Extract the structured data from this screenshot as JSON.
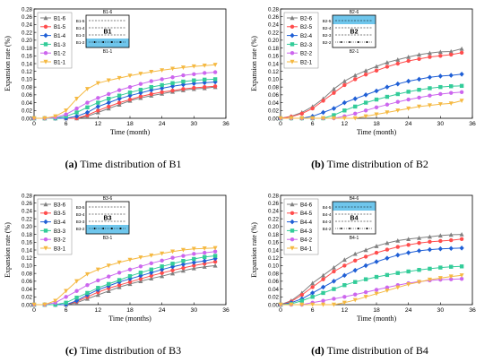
{
  "colors": {
    "s6": "#808080",
    "s5": "#ff4d4d",
    "s4": "#1f5fd6",
    "s3": "#33cc99",
    "s2": "#cc66ee",
    "s1": "#f5b942",
    "panel_fill": "#6fc6ec"
  },
  "panels": [
    {
      "letter": "(a)",
      "caption": "Time distribution of B1",
      "schematic": {
        "top": "B1-6",
        "rows": [
          "B1-5",
          "B1-4",
          "B1-3",
          "B1-2"
        ],
        "mid": "B1",
        "bottom": "B1-1",
        "fill_pos": "bottom"
      },
      "chart_data": {
        "type": "line",
        "xlabel": "Time (month)",
        "ylabel": "Expansion rate (%)",
        "xlim": [
          0,
          36
        ],
        "ylim": [
          0,
          0.28
        ],
        "xticks": [
          "0",
          "6",
          "12",
          "18",
          "24",
          "30",
          "36"
        ],
        "yticks": [
          "0.00",
          "0.02",
          "0.04",
          "0.06",
          "0.08",
          "0.10",
          "0.12",
          "0.14",
          "0.16",
          "0.18",
          "0.20",
          "0.22",
          "0.24",
          "0.26",
          "0.28"
        ],
        "legend": "top-left",
        "x": [
          0,
          2,
          4,
          6,
          8,
          10,
          12,
          14,
          16,
          18,
          20,
          22,
          24,
          26,
          28,
          30,
          32,
          34
        ],
        "series": [
          {
            "name": "B1-6",
            "values": [
              0,
              0,
              0,
              0,
              0,
              0.005,
              0.015,
              0.025,
              0.035,
              0.045,
              0.052,
              0.058,
              0.063,
              0.068,
              0.072,
              0.075,
              0.077,
              0.08
            ]
          },
          {
            "name": "B1-5",
            "values": [
              0,
              0,
              0,
              0,
              0,
              0.008,
              0.02,
              0.03,
              0.04,
              0.048,
              0.056,
              0.062,
              0.067,
              0.071,
              0.075,
              0.078,
              0.08,
              0.082
            ]
          },
          {
            "name": "B1-4",
            "values": [
              0,
              0,
              0,
              0,
              0.005,
              0.015,
              0.03,
              0.04,
              0.05,
              0.058,
              0.065,
              0.072,
              0.077,
              0.082,
              0.086,
              0.089,
              0.091,
              0.093
            ]
          },
          {
            "name": "B1-3",
            "values": [
              0,
              0,
              0,
              0.005,
              0.015,
              0.028,
              0.04,
              0.05,
              0.058,
              0.066,
              0.073,
              0.08,
              0.085,
              0.09,
              0.094,
              0.097,
              0.099,
              0.1
            ]
          },
          {
            "name": "B1-2",
            "values": [
              0,
              0,
              0.002,
              0.01,
              0.025,
              0.04,
              0.052,
              0.062,
              0.072,
              0.08,
              0.088,
              0.095,
              0.1,
              0.105,
              0.11,
              0.113,
              0.116,
              0.118
            ]
          },
          {
            "name": "B1-1",
            "values": [
              0,
              0,
              0.005,
              0.02,
              0.05,
              0.075,
              0.09,
              0.097,
              0.103,
              0.109,
              0.114,
              0.119,
              0.123,
              0.127,
              0.13,
              0.133,
              0.135,
              0.137
            ]
          }
        ]
      }
    },
    {
      "letter": "(b)",
      "caption": "Time distribution of B2",
      "schematic": {
        "top": "B2-6",
        "rows": [
          "B2-5",
          "B2-4",
          "B2-3",
          "B2-2"
        ],
        "mid": "B2",
        "bottom": "B2-1",
        "fill_pos": "top"
      },
      "chart_data": {
        "type": "line",
        "xlabel": "Time (month)",
        "ylabel": "Expansion rate (%)",
        "xlim": [
          0,
          36
        ],
        "ylim": [
          0,
          0.28
        ],
        "xticks": [
          "0",
          "6",
          "12",
          "18",
          "24",
          "30",
          "36"
        ],
        "yticks": [
          "0.00",
          "0.02",
          "0.04",
          "0.06",
          "0.08",
          "0.10",
          "0.12",
          "0.14",
          "0.16",
          "0.18",
          "0.20",
          "0.22",
          "0.24",
          "0.26",
          "0.28"
        ],
        "legend": "top-left",
        "x": [
          0,
          2,
          4,
          6,
          8,
          10,
          12,
          14,
          16,
          18,
          20,
          22,
          24,
          26,
          28,
          30,
          32,
          34
        ],
        "series": [
          {
            "name": "B2-6",
            "values": [
              0,
              0.005,
              0.015,
              0.03,
              0.05,
              0.075,
              0.095,
              0.11,
              0.122,
              0.133,
              0.143,
              0.15,
              0.157,
              0.163,
              0.167,
              0.17,
              0.171,
              0.178
            ]
          },
          {
            "name": "B2-5",
            "values": [
              0,
              0.004,
              0.012,
              0.025,
              0.045,
              0.065,
              0.085,
              0.1,
              0.112,
              0.122,
              0.132,
              0.14,
              0.147,
              0.152,
              0.157,
              0.16,
              0.163,
              0.168
            ]
          },
          {
            "name": "B2-4",
            "values": [
              0,
              0,
              0,
              0.005,
              0.015,
              0.025,
              0.04,
              0.05,
              0.06,
              0.07,
              0.08,
              0.088,
              0.095,
              0.1,
              0.105,
              0.108,
              0.11,
              0.113
            ]
          },
          {
            "name": "B2-3",
            "values": [
              0,
              0,
              0,
              0,
              0,
              0.008,
              0.02,
              0.03,
              0.04,
              0.048,
              0.055,
              0.062,
              0.068,
              0.073,
              0.077,
              0.08,
              0.082,
              0.083
            ]
          },
          {
            "name": "B2-2",
            "values": [
              0,
              0,
              0,
              0,
              0,
              0,
              0.005,
              0.012,
              0.02,
              0.028,
              0.035,
              0.042,
              0.048,
              0.053,
              0.058,
              0.062,
              0.065,
              0.067
            ]
          },
          {
            "name": "B2-1",
            "values": [
              0,
              0,
              0,
              0,
              0,
              0,
              0,
              0,
              0.005,
              0.01,
              0.015,
              0.02,
              0.025,
              0.03,
              0.033,
              0.036,
              0.038,
              0.045
            ]
          }
        ]
      }
    },
    {
      "letter": "(c)",
      "caption": "Time distribution of B3",
      "schematic": {
        "top": "B3-6",
        "rows": [
          "B3-5",
          "B3-4",
          "B3-3",
          "B3-2"
        ],
        "mid": "B3",
        "bottom": "B3-1",
        "fill_pos": "bottom"
      },
      "chart_data": {
        "type": "line",
        "xlabel": "Time (months)",
        "ylabel": "Expansion rate (%)",
        "xlim": [
          0,
          36
        ],
        "ylim": [
          0,
          0.28
        ],
        "xticks": [
          "0",
          "6",
          "12",
          "18",
          "24",
          "30",
          "36"
        ],
        "yticks": [
          "0.00",
          "0.02",
          "0.04",
          "0.06",
          "0.08",
          "0.10",
          "0.12",
          "0.14",
          "0.16",
          "0.18",
          "0.20",
          "0.22",
          "0.24",
          "0.26",
          "0.28"
        ],
        "legend": "top-left",
        "x": [
          0,
          2,
          4,
          6,
          8,
          10,
          12,
          14,
          16,
          18,
          20,
          22,
          24,
          26,
          28,
          30,
          32,
          34
        ],
        "series": [
          {
            "name": "B3-6",
            "values": [
              0,
              0,
              0,
              0,
              0.005,
              0.015,
              0.025,
              0.035,
              0.045,
              0.053,
              0.06,
              0.067,
              0.073,
              0.08,
              0.087,
              0.093,
              0.097,
              0.1
            ]
          },
          {
            "name": "B3-5",
            "values": [
              0,
              0,
              0,
              0,
              0.008,
              0.02,
              0.032,
              0.042,
              0.05,
              0.058,
              0.066,
              0.074,
              0.081,
              0.088,
              0.094,
              0.1,
              0.105,
              0.11
            ]
          },
          {
            "name": "B3-4",
            "values": [
              0,
              0,
              0,
              0,
              0.01,
              0.025,
              0.038,
              0.048,
              0.058,
              0.066,
              0.074,
              0.082,
              0.09,
              0.097,
              0.103,
              0.108,
              0.112,
              0.118
            ]
          },
          {
            "name": "B3-3",
            "values": [
              0,
              0,
              0,
              0.005,
              0.018,
              0.03,
              0.043,
              0.053,
              0.063,
              0.073,
              0.082,
              0.09,
              0.098,
              0.105,
              0.112,
              0.117,
              0.122,
              0.125
            ]
          },
          {
            "name": "B3-2",
            "values": [
              0,
              0,
              0.005,
              0.02,
              0.035,
              0.05,
              0.062,
              0.072,
              0.082,
              0.09,
              0.098,
              0.106,
              0.113,
              0.12,
              0.125,
              0.13,
              0.133,
              0.136
            ]
          },
          {
            "name": "B3-1",
            "values": [
              0,
              0,
              0.01,
              0.035,
              0.06,
              0.078,
              0.09,
              0.1,
              0.108,
              0.115,
              0.121,
              0.126,
              0.131,
              0.136,
              0.14,
              0.143,
              0.144,
              0.145
            ]
          }
        ]
      }
    },
    {
      "letter": "(d)",
      "caption": "Time distribution of B4",
      "schematic": {
        "top": "B4-6",
        "rows": [
          "B4-5",
          "B4-4",
          "B4-3",
          "B4-2"
        ],
        "mid": "B4",
        "bottom": "B4-1",
        "fill_pos": "top"
      },
      "chart_data": {
        "type": "line",
        "xlabel": "Time (month)",
        "ylabel": "Expansion rate (%)",
        "xlim": [
          0,
          36
        ],
        "ylim": [
          0,
          0.28
        ],
        "xticks": [
          "0",
          "6",
          "12",
          "18",
          "24",
          "30",
          "36"
        ],
        "yticks": [
          "0.00",
          "0.02",
          "0.04",
          "0.06",
          "0.08",
          "0.10",
          "0.12",
          "0.14",
          "0.16",
          "0.18",
          "0.20",
          "0.22",
          "0.24",
          "0.26",
          "0.28"
        ],
        "legend": "top-left",
        "x": [
          0,
          2,
          4,
          6,
          8,
          10,
          12,
          14,
          16,
          18,
          20,
          22,
          24,
          26,
          28,
          30,
          32,
          34
        ],
        "series": [
          {
            "name": "B4-6",
            "values": [
              0,
              0.01,
              0.03,
              0.055,
              0.075,
              0.095,
              0.115,
              0.13,
              0.14,
              0.15,
              0.158,
              0.164,
              0.168,
              0.171,
              0.174,
              0.177,
              0.179,
              0.18
            ]
          },
          {
            "name": "B4-5",
            "values": [
              0,
              0.008,
              0.025,
              0.045,
              0.065,
              0.085,
              0.1,
              0.113,
              0.123,
              0.133,
              0.141,
              0.148,
              0.153,
              0.158,
              0.161,
              0.163,
              0.165,
              0.168
            ]
          },
          {
            "name": "B4-4",
            "values": [
              0,
              0.005,
              0.015,
              0.03,
              0.045,
              0.06,
              0.075,
              0.088,
              0.1,
              0.11,
              0.119,
              0.127,
              0.133,
              0.138,
              0.141,
              0.143,
              0.144,
              0.145
            ]
          },
          {
            "name": "B4-3",
            "values": [
              0,
              0.002,
              0.01,
              0.02,
              0.03,
              0.04,
              0.05,
              0.058,
              0.065,
              0.071,
              0.076,
              0.081,
              0.085,
              0.089,
              0.092,
              0.095,
              0.097,
              0.098
            ]
          },
          {
            "name": "B4-2",
            "values": [
              0,
              0,
              0,
              0.005,
              0.01,
              0.015,
              0.02,
              0.026,
              0.032,
              0.038,
              0.044,
              0.05,
              0.055,
              0.059,
              0.062,
              0.064,
              0.065,
              0.066
            ]
          },
          {
            "name": "B4-1",
            "values": [
              0,
              0,
              0,
              0,
              0,
              0,
              0.005,
              0.012,
              0.02,
              0.028,
              0.036,
              0.044,
              0.052,
              0.058,
              0.064,
              0.068,
              0.072,
              0.075
            ]
          }
        ]
      }
    }
  ]
}
